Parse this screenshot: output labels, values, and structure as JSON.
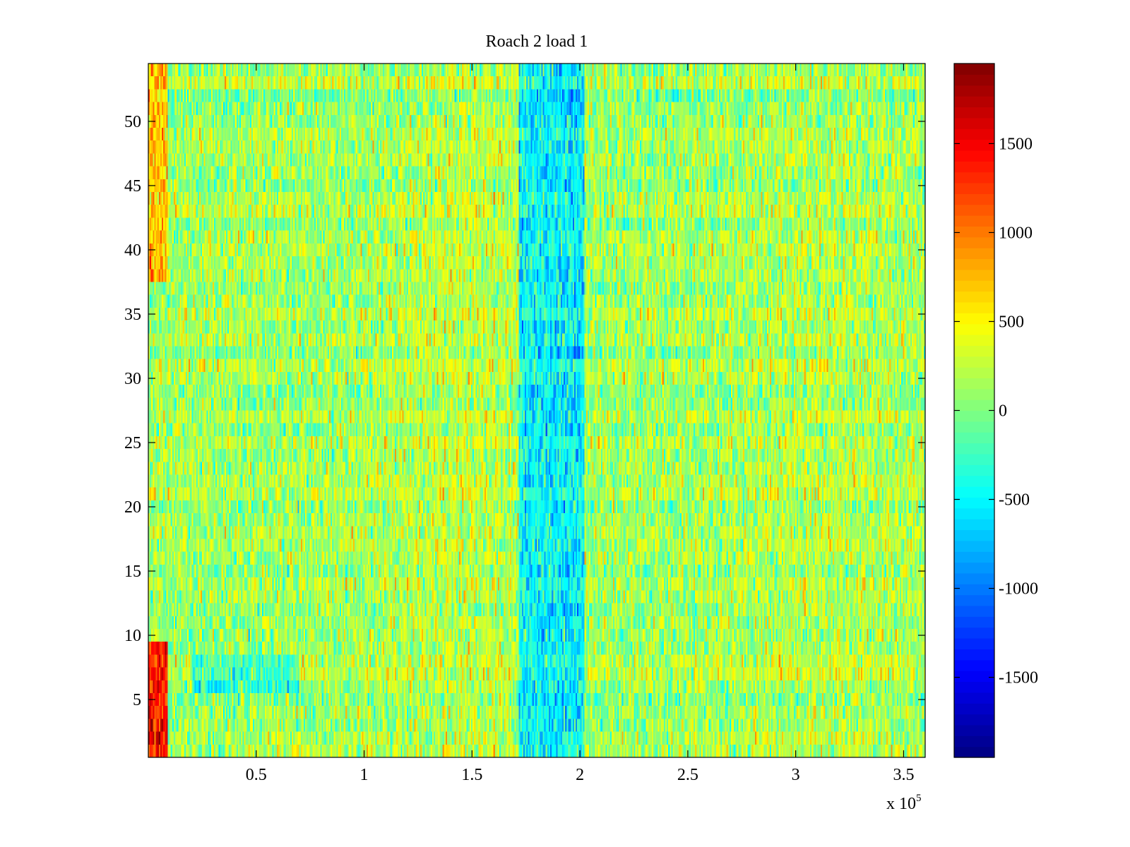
{
  "chart_data": {
    "type": "heatmap",
    "title": "Roach 2 load 1",
    "xlabel": "",
    "ylabel": "",
    "x_scale_label": "x 10",
    "x_scale_exponent": "5",
    "xlim": [
      0,
      3.6
    ],
    "ylim": [
      0.5,
      54.5
    ],
    "x_ticks": [
      0.5,
      1,
      1.5,
      2,
      2.5,
      3,
      3.5
    ],
    "x_tick_labels": [
      "0.5",
      "1",
      "1.5",
      "2",
      "2.5",
      "3",
      "3.5"
    ],
    "y_ticks": [
      5,
      10,
      15,
      20,
      25,
      30,
      35,
      40,
      45,
      50
    ],
    "y_tick_labels": [
      "5",
      "10",
      "15",
      "20",
      "25",
      "30",
      "35",
      "40",
      "45",
      "50"
    ],
    "rows": 54,
    "colormap": "jet",
    "clim": [
      -1950,
      1950
    ],
    "colorbar": {
      "ticks": [
        -1500,
        -1000,
        -500,
        0,
        500,
        1000,
        1500
      ],
      "tick_labels": [
        "-1500",
        "-1000",
        "-500",
        "0",
        "500",
        "1000",
        "1500"
      ]
    },
    "features": [
      {
        "description": "high values at leftmost columns",
        "x_range": [
          0,
          0.09
        ],
        "rows": [
          1,
          9
        ],
        "value": 1400
      },
      {
        "description": "moderately high values at leftmost columns",
        "x_range": [
          0,
          0.09
        ],
        "rows": [
          38,
          54
        ],
        "value": 700
      },
      {
        "description": "low band around x = 1.85",
        "x_range": [
          1.72,
          2.02
        ],
        "rows": [
          1,
          54
        ],
        "value": -650
      }
    ]
  },
  "colors": {
    "background": "#ffffff",
    "axes": "#000000"
  }
}
